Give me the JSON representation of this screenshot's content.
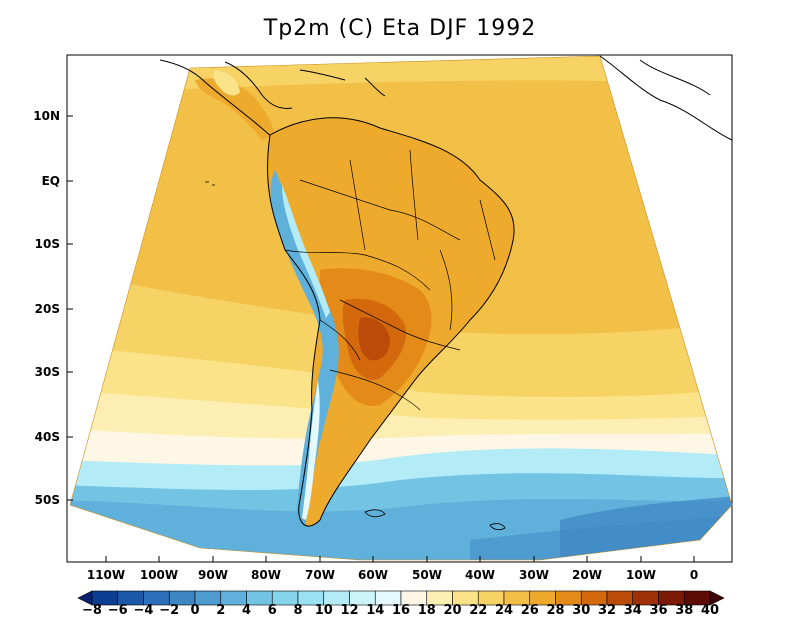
{
  "title": "Tp2m (C) Eta DJF 1992",
  "lat_labels": [
    "10N",
    "EQ",
    "10S",
    "20S",
    "30S",
    "40S",
    "50S"
  ],
  "lon_labels": [
    "110W",
    "100W",
    "90W",
    "80W",
    "70W",
    "60W",
    "50W",
    "40W",
    "30W",
    "20W",
    "10W",
    "0"
  ],
  "colorbar": {
    "labels": [
      "-8",
      "-6",
      "-4",
      "-2",
      "0",
      "2",
      "4",
      "6",
      "8",
      "10",
      "12",
      "14",
      "16",
      "18",
      "20",
      "22",
      "24",
      "26",
      "28",
      "30",
      "32",
      "34",
      "36",
      "38",
      "40"
    ],
    "colors": [
      "#08216b",
      "#0d3d91",
      "#1b58a8",
      "#2b70b8",
      "#3d86c4",
      "#4e9bcf",
      "#5fb0da",
      "#72c3e4",
      "#84d4ec",
      "#9ae2f3",
      "#b3ecf7",
      "#ccf4fb",
      "#e4f9fd",
      "#fff7e6",
      "#fdeeb3",
      "#fbe38a",
      "#f7d265",
      "#f2bf47",
      "#eeaa2c",
      "#e48a18",
      "#d3680d",
      "#bb4b09",
      "#9e3107",
      "#7d1a06",
      "#5e0a05",
      "#3f0205"
    ]
  }
}
